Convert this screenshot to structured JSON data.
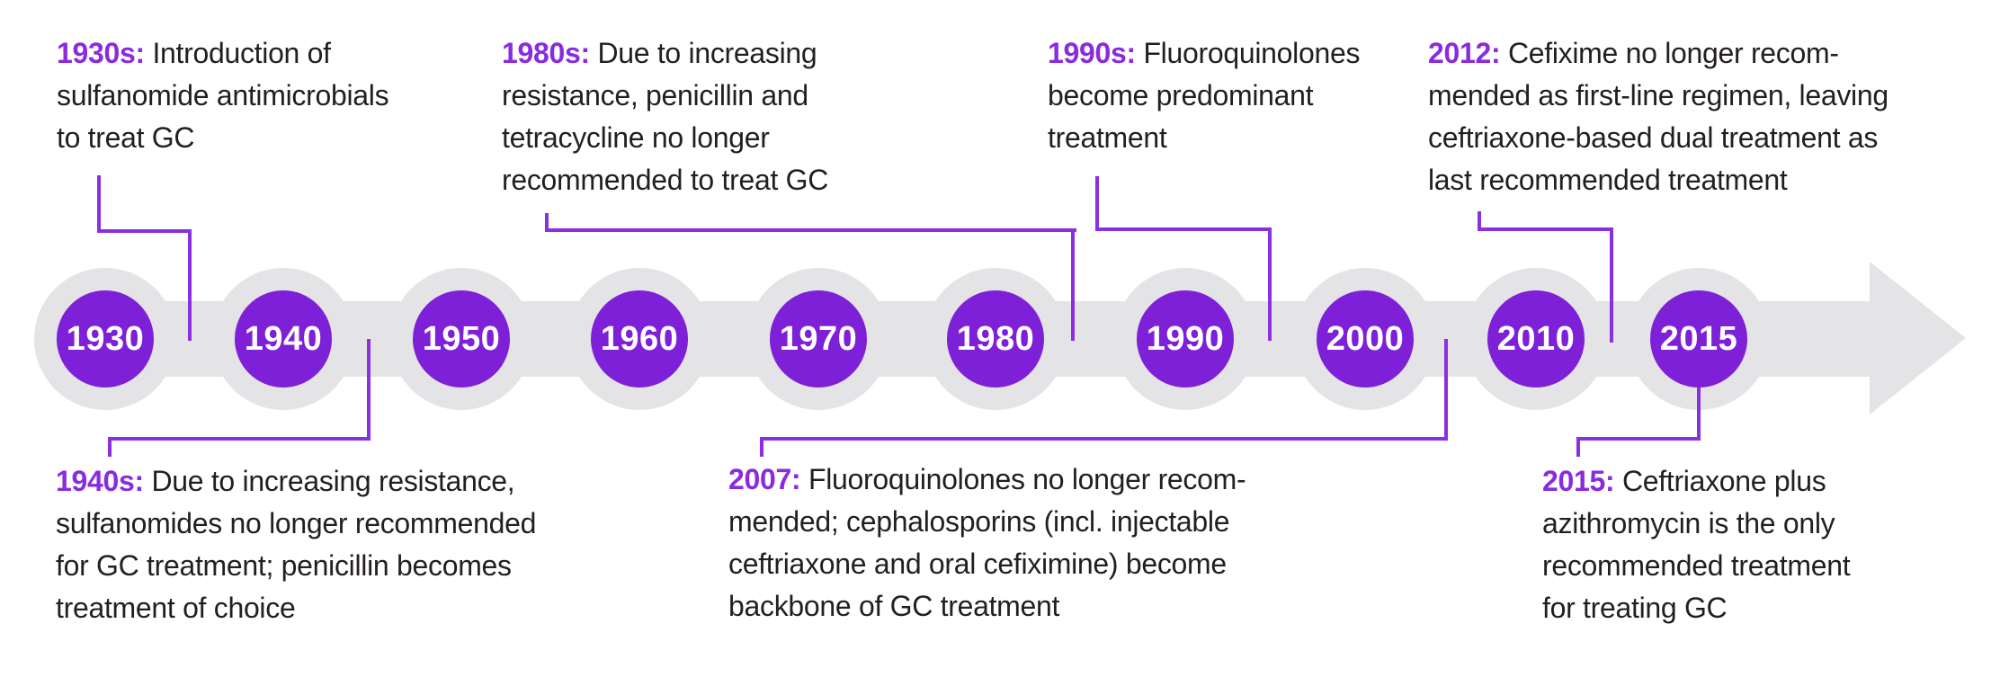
{
  "timeline": {
    "years": [
      "1930",
      "1940",
      "1950",
      "1960",
      "1970",
      "1980",
      "1990",
      "2000",
      "2010",
      "2015"
    ],
    "arrow_direction": "right"
  },
  "annotations": [
    {
      "id": "1930s",
      "placement": "above",
      "prefix": "1930s:",
      "lines": [
        "Introduction of",
        "sulfanomide antimicrobials",
        "to treat GC"
      ]
    },
    {
      "id": "1940s",
      "placement": "below",
      "prefix": "1940s:",
      "lines": [
        "Due to increasing resistance,",
        "sulfanomides no longer recommended",
        "for GC treatment; penicillin becomes",
        "treatment of choice"
      ]
    },
    {
      "id": "1980s",
      "placement": "above",
      "prefix": "1980s:",
      "lines": [
        "Due to increasing",
        "resistance, penicillin and",
        "tetracycline no longer",
        "recommended to treat GC"
      ]
    },
    {
      "id": "1990s",
      "placement": "above",
      "prefix": "1990s:",
      "lines": [
        "Fluoroquinolones",
        "become predominant",
        "treatment"
      ]
    },
    {
      "id": "2007",
      "placement": "below",
      "prefix": "2007:",
      "lines": [
        "Fluoroquinolones no longer recom-",
        "mended; cephalosporins (incl. injectable",
        "ceftriaxone and oral cefiximine) become",
        "backbone of GC treatment"
      ]
    },
    {
      "id": "2012",
      "placement": "above",
      "prefix": "2012:",
      "lines": [
        "Cefixime no longer recom-",
        "mended as first-line regimen, leaving",
        "ceftriaxone-based dual treatment as",
        "last recommended treatment"
      ]
    },
    {
      "id": "2015",
      "placement": "below",
      "prefix": "2015:",
      "lines": [
        "Ceftriaxone plus",
        "azithromycin is the only",
        "recommended treatment",
        "for treating GC"
      ]
    }
  ],
  "colors": {
    "purple_circle": "#7e20d8",
    "purple_text": "#8a2bdf",
    "connector_purple": "#8a2fe2",
    "timeline_gray": "#e4e3e5",
    "body_text": "#231f20",
    "year_text": "#ffffff"
  }
}
